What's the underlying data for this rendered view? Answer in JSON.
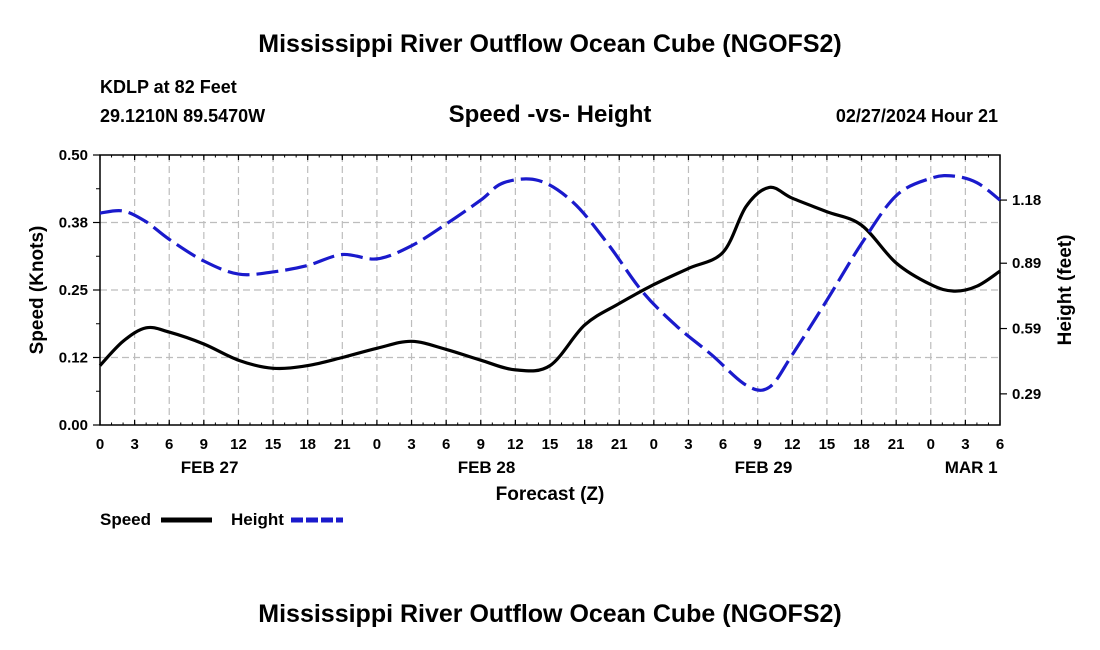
{
  "header": {
    "title": "Mississippi River Outflow Ocean Cube (NGOFS2)",
    "station": "KDLP at 82 Feet",
    "coords": "29.1210N  89.5470W",
    "chart_title": "Speed -vs- Height",
    "datetime": "02/27/2024 Hour 21"
  },
  "footer": {
    "title": "Mississippi River Outflow Ocean Cube (NGOFS2)"
  },
  "legend": {
    "speed_label": "Speed",
    "height_label": "Height",
    "speed_color": "#000000",
    "height_color": "#1a1acc"
  },
  "chart_data": {
    "type": "line",
    "title": "Speed -vs- Height",
    "xlabel": "Forecast (Z)",
    "ylabel": "Speed (Knots)",
    "y2label": "Height (feet)",
    "x_range": [
      0,
      78
    ],
    "x_tick_values": [
      0,
      3,
      6,
      9,
      12,
      15,
      18,
      21,
      24,
      27,
      30,
      33,
      36,
      39,
      42,
      45,
      48,
      51,
      54,
      57,
      60,
      63,
      66,
      69,
      72,
      75,
      78
    ],
    "x_tick_labels": [
      "0",
      "3",
      "6",
      "9",
      "12",
      "15",
      "18",
      "21",
      "0",
      "3",
      "6",
      "9",
      "12",
      "15",
      "18",
      "21",
      "0",
      "3",
      "6",
      "9",
      "12",
      "15",
      "18",
      "21",
      "0",
      "3",
      "6"
    ],
    "date_labels": [
      {
        "x": 9.5,
        "label": "FEB 27"
      },
      {
        "x": 33.5,
        "label": "FEB 28"
      },
      {
        "x": 57.5,
        "label": "FEB 29"
      },
      {
        "x": 75.5,
        "label": "MAR 1"
      }
    ],
    "ylim": [
      0,
      0.5
    ],
    "y_ticks": [
      0.0,
      0.125,
      0.25,
      0.375,
      0.5
    ],
    "y_tick_labels": [
      "0.00",
      "0.12",
      "0.25",
      "0.38",
      "0.50"
    ],
    "y2lim": [
      0.147,
      1.387
    ],
    "y2_ticks": [
      0.29,
      0.59,
      0.89,
      1.18
    ],
    "y2_tick_labels": [
      "0.29",
      "0.59",
      "0.89",
      "1.18"
    ],
    "grid": true,
    "legend_position": "bottom-left",
    "series": [
      {
        "name": "Speed",
        "axis": "left",
        "color": "#000000",
        "dash": "solid",
        "x": [
          0,
          2,
          4,
          6,
          9,
          12,
          15,
          18,
          21,
          24,
          27,
          30,
          33,
          36,
          39,
          42,
          45,
          48,
          51,
          54,
          56,
          58,
          60,
          63,
          66,
          69,
          72,
          74,
          76,
          78
        ],
        "y": [
          0.11,
          0.155,
          0.18,
          0.172,
          0.15,
          0.12,
          0.105,
          0.11,
          0.125,
          0.142,
          0.155,
          0.14,
          0.12,
          0.102,
          0.11,
          0.185,
          0.225,
          0.26,
          0.29,
          0.32,
          0.405,
          0.44,
          0.42,
          0.395,
          0.37,
          0.3,
          0.26,
          0.248,
          0.257,
          0.285
        ]
      },
      {
        "name": "Height",
        "axis": "right",
        "color": "#1a1acc",
        "dash": "dashed",
        "x": [
          0,
          2,
          4,
          6,
          9,
          12,
          15,
          18,
          21,
          24,
          27,
          30,
          33,
          35,
          38,
          41,
          44,
          47,
          50,
          53,
          56,
          58,
          60,
          63,
          66,
          69,
          72,
          74,
          76,
          78
        ],
        "y": [
          1.12,
          1.13,
          1.08,
          1.0,
          0.9,
          0.84,
          0.85,
          0.88,
          0.93,
          0.91,
          0.97,
          1.07,
          1.18,
          1.26,
          1.27,
          1.17,
          0.98,
          0.76,
          0.6,
          0.47,
          0.33,
          0.32,
          0.47,
          0.72,
          0.98,
          1.2,
          1.28,
          1.29,
          1.26,
          1.18
        ]
      }
    ]
  }
}
